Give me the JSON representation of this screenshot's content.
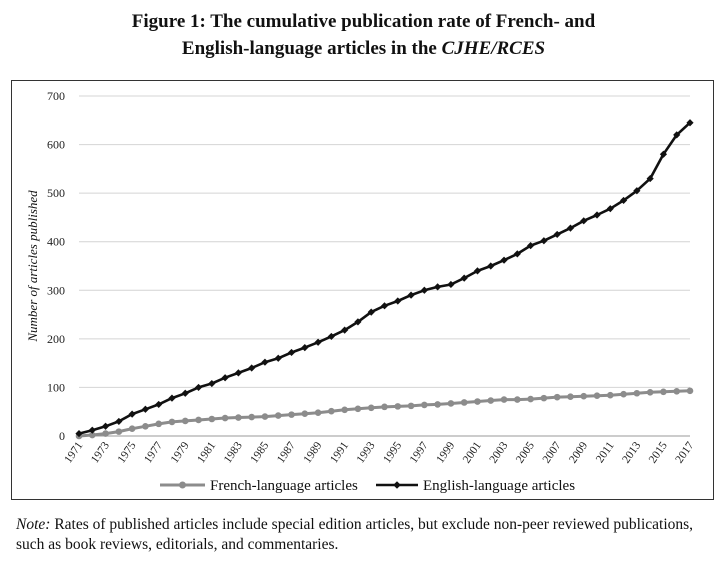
{
  "title": {
    "line1": "Figure 1: The cumulative publication rate of French- and",
    "line2_prefix": "English-language articles in the ",
    "line2_italic": "CJHE/RCES"
  },
  "note": {
    "label": "Note:",
    "text": " Rates of published articles include special edition articles, but exclude non-peer reviewed publications, such as book reviews, editorials, and commentaries."
  },
  "chart_data": {
    "type": "line",
    "xlabel": "",
    "ylabel": "Number of articles published",
    "ylim": [
      0,
      700
    ],
    "yticks": [
      0,
      100,
      200,
      300,
      400,
      500,
      600,
      700
    ],
    "x": [
      1971,
      1972,
      1973,
      1974,
      1975,
      1976,
      1977,
      1978,
      1979,
      1980,
      1981,
      1982,
      1983,
      1984,
      1985,
      1986,
      1987,
      1988,
      1989,
      1990,
      1991,
      1992,
      1993,
      1994,
      1995,
      1996,
      1997,
      1998,
      1999,
      2000,
      2001,
      2002,
      2003,
      2004,
      2005,
      2006,
      2007,
      2008,
      2009,
      2010,
      2011,
      2012,
      2013,
      2014,
      2015,
      2016,
      2017
    ],
    "xtick_labels": [
      "1971",
      "1973",
      "1975",
      "1977",
      "1979",
      "1981",
      "1983",
      "1985",
      "1987",
      "1989",
      "1991",
      "1993",
      "1995",
      "1997",
      "1999",
      "2001",
      "2003",
      "2005",
      "2007",
      "2009",
      "2011",
      "2013",
      "2015",
      "2017"
    ],
    "grid": "horizontal",
    "legend": "bottom",
    "series": [
      {
        "name": "French-language articles",
        "color": "#8c8c8c",
        "values": [
          0,
          2,
          5,
          9,
          15,
          20,
          25,
          29,
          31,
          33,
          35,
          37,
          38,
          39,
          40,
          42,
          44,
          46,
          48,
          51,
          54,
          56,
          58,
          60,
          61,
          62,
          64,
          65,
          67,
          69,
          71,
          73,
          75,
          75,
          76,
          78,
          80,
          81,
          82,
          83,
          84,
          86,
          88,
          90,
          91,
          92,
          93
        ]
      },
      {
        "name": "English-language articles",
        "color": "#111111",
        "values": [
          5,
          12,
          20,
          30,
          45,
          55,
          65,
          78,
          88,
          100,
          108,
          120,
          130,
          140,
          152,
          160,
          172,
          182,
          193,
          205,
          218,
          235,
          255,
          268,
          278,
          290,
          300,
          307,
          312,
          325,
          340,
          350,
          362,
          375,
          392,
          402,
          415,
          428,
          443,
          455,
          468,
          485,
          505,
          530,
          580,
          620,
          645
        ]
      }
    ]
  }
}
